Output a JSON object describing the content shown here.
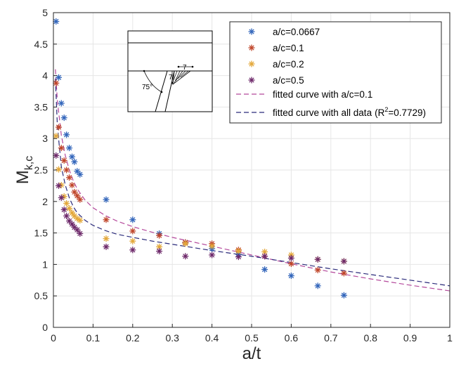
{
  "chart_data": {
    "type": "scatter",
    "xlabel": "a/t",
    "ylabel": "M",
    "ylabel_sub": "k,c",
    "xlim": [
      0,
      1
    ],
    "ylim": [
      0,
      5
    ],
    "xticks": [
      "0",
      "0.1",
      "0.2",
      "0.3",
      "0.4",
      "0.5",
      "0.6",
      "0.7",
      "0.8",
      "0.9",
      "1"
    ],
    "yticks": [
      "0",
      "0.5",
      "1",
      "1.5",
      "2",
      "2.5",
      "3",
      "3.5",
      "4",
      "4.5",
      "5"
    ],
    "grid": true,
    "legend_position": "top-right",
    "series": [
      {
        "name": "a/c=0.0667",
        "color": "#3366bb",
        "marker": "asterisk",
        "x": [
          0.0067,
          0.0133,
          0.02,
          0.027,
          0.033,
          0.04,
          0.047,
          0.053,
          0.06,
          0.067,
          0.133,
          0.2,
          0.267,
          0.333,
          0.4,
          0.467,
          0.533,
          0.6,
          0.667,
          0.733
        ],
        "y": [
          4.86,
          3.97,
          3.56,
          3.33,
          3.06,
          2.85,
          2.71,
          2.63,
          2.48,
          2.43,
          2.03,
          1.71,
          1.49,
          1.35,
          1.25,
          1.16,
          0.92,
          0.82,
          0.66,
          0.51
        ]
      },
      {
        "name": "a/c=0.1",
        "color": "#c0462b",
        "marker": "asterisk",
        "x": [
          0.0067,
          0.0133,
          0.02,
          0.027,
          0.033,
          0.04,
          0.047,
          0.053,
          0.06,
          0.067,
          0.133,
          0.2,
          0.267,
          0.333,
          0.4,
          0.467,
          0.533,
          0.6,
          0.667,
          0.733
        ],
        "y": [
          3.88,
          3.18,
          2.85,
          2.65,
          2.5,
          2.38,
          2.26,
          2.15,
          2.09,
          2.03,
          1.71,
          1.53,
          1.46,
          1.35,
          1.33,
          1.23,
          1.13,
          1.01,
          0.91,
          0.86
        ]
      },
      {
        "name": "a/c=0.2",
        "color": "#e3a83a",
        "marker": "asterisk",
        "x": [
          0.0067,
          0.0133,
          0.02,
          0.027,
          0.033,
          0.04,
          0.047,
          0.053,
          0.06,
          0.067,
          0.133,
          0.2,
          0.267,
          0.333,
          0.4,
          0.467,
          0.533,
          0.6,
          0.667,
          0.733
        ],
        "y": [
          3.04,
          2.51,
          2.26,
          2.08,
          1.97,
          1.89,
          1.82,
          1.77,
          1.73,
          1.7,
          1.41,
          1.37,
          1.28,
          1.33,
          1.29,
          1.21,
          1.2,
          1.15,
          1.08,
          1.05
        ]
      },
      {
        "name": "a/c=0.5",
        "color": "#6e2a6b",
        "marker": "asterisk",
        "x": [
          0.0067,
          0.0133,
          0.02,
          0.027,
          0.033,
          0.04,
          0.047,
          0.053,
          0.06,
          0.067,
          0.133,
          0.2,
          0.267,
          0.333,
          0.4,
          0.467,
          0.533,
          0.6,
          0.667,
          0.733
        ],
        "y": [
          2.73,
          2.25,
          2.06,
          1.87,
          1.77,
          1.69,
          1.64,
          1.59,
          1.55,
          1.49,
          1.28,
          1.23,
          1.21,
          1.13,
          1.15,
          1.12,
          1.13,
          1.1,
          1.08,
          1.05
        ]
      },
      {
        "name": "fitted curve with a/c=0.1",
        "color": "#b4489b",
        "style": "dashed",
        "x": [
          0.005,
          0.01,
          0.02,
          0.03,
          0.04,
          0.05,
          0.06,
          0.08,
          0.1,
          0.13,
          0.16,
          0.2,
          0.25,
          0.3,
          0.35,
          0.4,
          0.5,
          0.6,
          0.7,
          0.8,
          0.9,
          1.0
        ],
        "y": [
          4.1,
          3.6,
          3.05,
          2.73,
          2.5,
          2.33,
          2.2,
          2.02,
          1.9,
          1.78,
          1.69,
          1.6,
          1.51,
          1.43,
          1.36,
          1.29,
          1.15,
          1.01,
          0.88,
          0.77,
          0.67,
          0.58
        ]
      },
      {
        "name": "fitted curve with all data",
        "name_suffix_pre": "(R",
        "name_superscript": "2",
        "name_suffix_post": "=0.7729)",
        "color": "#2a2a7a",
        "style": "dashed",
        "x": [
          0.005,
          0.01,
          0.02,
          0.03,
          0.04,
          0.05,
          0.06,
          0.08,
          0.1,
          0.13,
          0.16,
          0.2,
          0.25,
          0.3,
          0.35,
          0.4,
          0.5,
          0.6,
          0.7,
          0.8,
          0.9,
          1.0
        ],
        "y": [
          3.95,
          3.2,
          2.55,
          2.26,
          2.06,
          1.92,
          1.82,
          1.7,
          1.62,
          1.54,
          1.48,
          1.43,
          1.37,
          1.32,
          1.27,
          1.22,
          1.13,
          1.03,
          0.93,
          0.84,
          0.75,
          0.66
        ]
      }
    ],
    "inset": {
      "angle_label": "75°",
      "dim_label_top": "7",
      "dim_label_side": "7"
    }
  }
}
